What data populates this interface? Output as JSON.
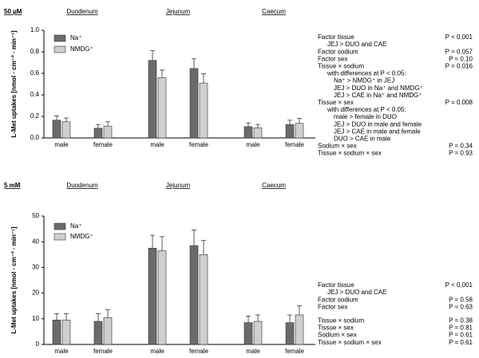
{
  "chart_data": [
    {
      "type": "bar",
      "title": "50 µM",
      "groups": [
        "Duodenum",
        "Jejunum",
        "Caecum"
      ],
      "categories": [
        "male",
        "female",
        "male",
        "female",
        "male",
        "female"
      ],
      "y_label": "L-Met uptakes [nmol · cm⁻² · min⁻¹]",
      "ylim": [
        0,
        1
      ],
      "yticks": [
        {
          "value": 0,
          "label": "0.0"
        },
        0.2,
        0.4,
        0.6,
        0.8,
        {
          "value": 1,
          "label": "1.0"
        }
      ],
      "series": [
        {
          "name": "Na⁺",
          "color": "#6b6b6b",
          "values": [
            0.165,
            0.09,
            0.72,
            0.645,
            0.105,
            0.125
          ],
          "errors": [
            0.04,
            0.035,
            0.09,
            0.09,
            0.035,
            0.04
          ]
        },
        {
          "name": "NMDG⁺",
          "color": "#cfcfcf",
          "values": [
            0.15,
            0.11,
            0.56,
            0.51,
            0.095,
            0.135
          ],
          "errors": [
            0.035,
            0.04,
            0.07,
            0.085,
            0.03,
            0.045
          ]
        }
      ],
      "stats": [
        [
          {
            "text": "Factor tissue",
            "p": "P < 0.001",
            "notes": [
              "JEJ > DUO and CAE"
            ]
          },
          {
            "text": "Factor sodium",
            "p": "P = 0.057"
          },
          {
            "text": "Factor sex",
            "p": "P = 0.10"
          },
          {
            "text": "Tissue × sodium",
            "p": "P = 0.016",
            "detail": "with differences at P < 0.05:",
            "notes": [
              "Na⁺ > NMDG⁺ in JEJ",
              "JEJ > DUO in Na⁺ and NMDG⁺",
              "JEJ > CAE in Na⁺ and NMDG⁺"
            ]
          },
          {
            "text": "Tissue × sex",
            "p": "P = 0.008",
            "detail": "with differences at P < 0.05:",
            "notes": [
              "male > female in DUO",
              "JEJ  > DUO in male and female",
              "JEJ  > CAE in male and female",
              "DUO > CAE in male"
            ]
          },
          {
            "text": "Sodium × sex",
            "p": "P = 0.34"
          },
          {
            "text": "Tissue × sodium × sex",
            "p": "P = 0.93"
          }
        ]
      ]
    },
    {
      "type": "bar",
      "title": "5 mM",
      "groups": [
        "Duodenum",
        "Jejunum",
        "Caecum"
      ],
      "categories": [
        "male",
        "female",
        "male",
        "female",
        "male",
        "female"
      ],
      "y_label": "L-Met uptakes [nmol · cm⁻² · min⁻¹]",
      "ylim": [
        0,
        50
      ],
      "yticks": [
        0,
        10,
        20,
        30,
        40,
        50
      ],
      "series": [
        {
          "name": "Na⁺",
          "color": "#6b6b6b",
          "values": [
            9.5,
            9,
            37.5,
            38.5,
            8.5,
            8.5
          ],
          "errors": [
            2.5,
            3,
            5,
            6,
            2.5,
            3
          ]
        },
        {
          "name": "NMDG⁺",
          "color": "#cfcfcf",
          "values": [
            9.5,
            10.5,
            36.5,
            35,
            9,
            11.5
          ],
          "errors": [
            2.5,
            3,
            5.5,
            5.5,
            2.5,
            3.5
          ]
        }
      ],
      "stats": [
        [
          {
            "text": "Factor tissue",
            "p": "P < 0.001",
            "notes": [
              "JEJ > DUO and CAE"
            ]
          },
          {
            "text": "Factor sodium",
            "p": "P = 0.58"
          },
          {
            "text": "Factor sex",
            "p": "P = 0.63"
          }
        ],
        [
          {
            "text": "Tissue × sodium",
            "p": "P = 0.38"
          },
          {
            "text": "Tissue × sex",
            "p": "P = 0.81"
          },
          {
            "text": "Sodium × sex",
            "p": "P = 0.61"
          },
          {
            "text": "Tissue × sodium × sex",
            "p": "P = 0.61"
          }
        ]
      ]
    }
  ]
}
